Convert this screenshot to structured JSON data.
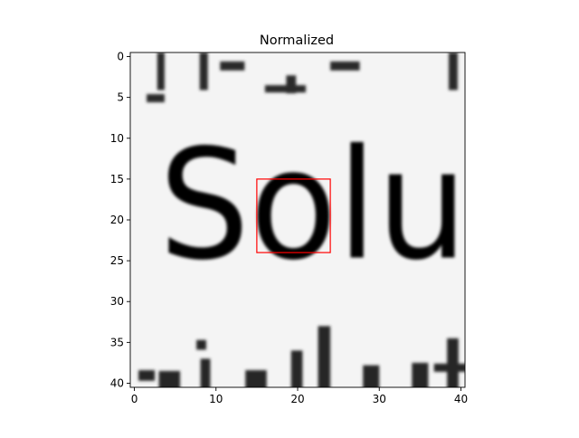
{
  "chart_data": {
    "type": "heatmap",
    "title": "Normalized",
    "xlabel": "",
    "ylabel": "",
    "xlim": [
      -0.5,
      40.5
    ],
    "ylim": [
      40.5,
      -0.5
    ],
    "x_ticks": [
      0,
      10,
      20,
      30,
      40
    ],
    "y_ticks": [
      0,
      5,
      10,
      15,
      20,
      25,
      30,
      35,
      40
    ],
    "colormap": "gray",
    "grid": false,
    "image_text_content": [
      "Solu"
    ],
    "highlight_rect": {
      "x0": 15,
      "y0": 15,
      "x1": 24,
      "y1": 24,
      "color": "#ff0000"
    }
  }
}
